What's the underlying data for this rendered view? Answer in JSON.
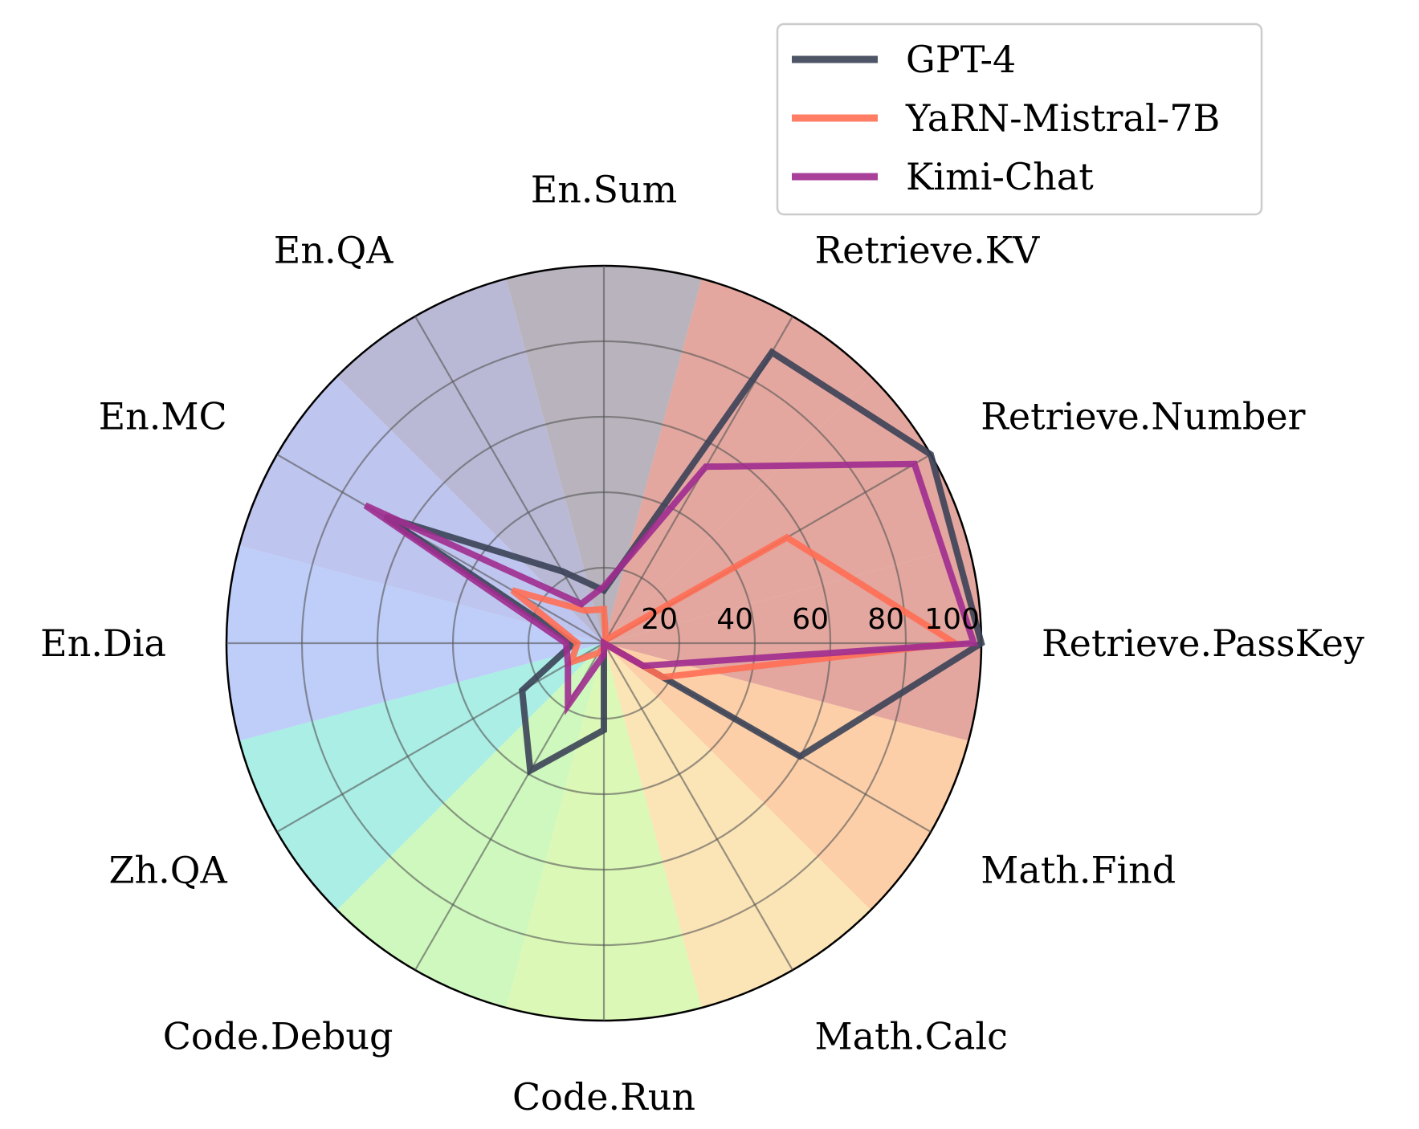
{
  "chart_data": {
    "type": "radar",
    "categories": [
      "Retrieve.PassKey",
      "Retrieve.Number",
      "Retrieve.KV",
      "En.Sum",
      "En.QA",
      "En.MC",
      "En.Dia",
      "Zh.QA",
      "Code.Debug",
      "Code.Run",
      "Math.Calc",
      "Math.Find"
    ],
    "rticks": [
      20,
      40,
      60,
      80,
      100
    ],
    "rlim": [
      0,
      100
    ],
    "series": [
      {
        "name": "GPT-4",
        "color": "#3b4256",
        "values": [
          100,
          100,
          89,
          14,
          22,
          67,
          8,
          25,
          39,
          23,
          0,
          60
        ]
      },
      {
        "name": "YaRN-Mistral-7B",
        "color": "#ff6e54",
        "values": [
          93,
          56,
          1,
          9,
          10,
          28,
          7,
          10,
          3,
          1,
          0,
          18
        ]
      },
      {
        "name": "Kimi-Chat",
        "color": "#a02c8f",
        "values": [
          98,
          95,
          54,
          15,
          12,
          73,
          10,
          11,
          19,
          3,
          0,
          12
        ]
      }
    ],
    "wedge_colors": [
      "#d98a7f",
      "#d98a7f",
      "#d98a7f",
      "#a09aa6",
      "#a3a1c7",
      "#a8b1e8",
      "#a8bef5",
      "#8ee8dc",
      "#bff5a8",
      "#cff59f",
      "#f9db9e",
      "#fbbf8c"
    ],
    "legend_position": "upper-right",
    "grid": true
  }
}
